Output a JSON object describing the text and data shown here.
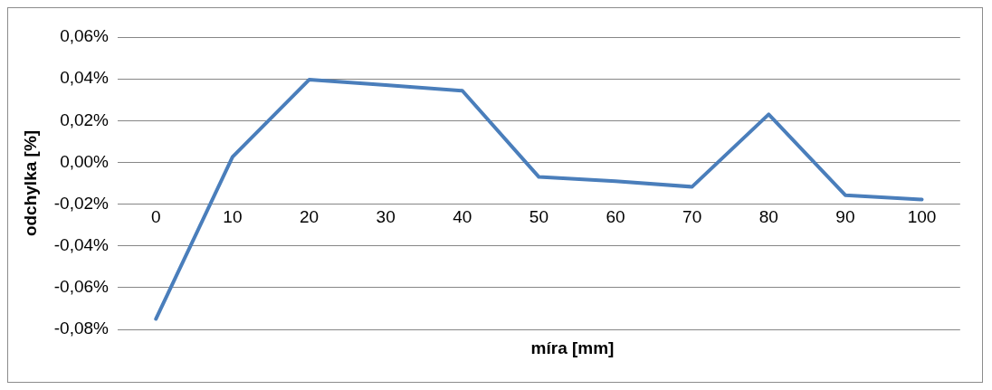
{
  "chart_data": {
    "type": "line",
    "xlabel": "míra [mm]",
    "ylabel": "odchylka [%]",
    "categories": [
      "0",
      "10",
      "20",
      "30",
      "40",
      "50",
      "60",
      "70",
      "80",
      "90",
      "100"
    ],
    "series": [
      {
        "color": "#4a7ebb",
        "values": [
          -0.075,
          0.0026,
          0.0396,
          0.037,
          0.0343,
          -0.007,
          -0.009,
          -0.0117,
          0.023,
          -0.0157,
          -0.0178
        ]
      }
    ],
    "ylim": [
      -0.08,
      0.06
    ],
    "yticks": [
      {
        "value": -0.08,
        "label": "-0,08%"
      },
      {
        "value": -0.06,
        "label": "-0,06%"
      },
      {
        "value": -0.04,
        "label": "-0,04%"
      },
      {
        "value": -0.02,
        "label": "-0,02%"
      },
      {
        "value": 0,
        "label": "0,00%"
      },
      {
        "value": 0.02,
        "label": "0,02%"
      },
      {
        "value": 0.04,
        "label": "0,04%"
      },
      {
        "value": 0.06,
        "label": "0,06%"
      }
    ],
    "grid": "y",
    "legend": false,
    "marker": "none",
    "line_style": "solid"
  }
}
